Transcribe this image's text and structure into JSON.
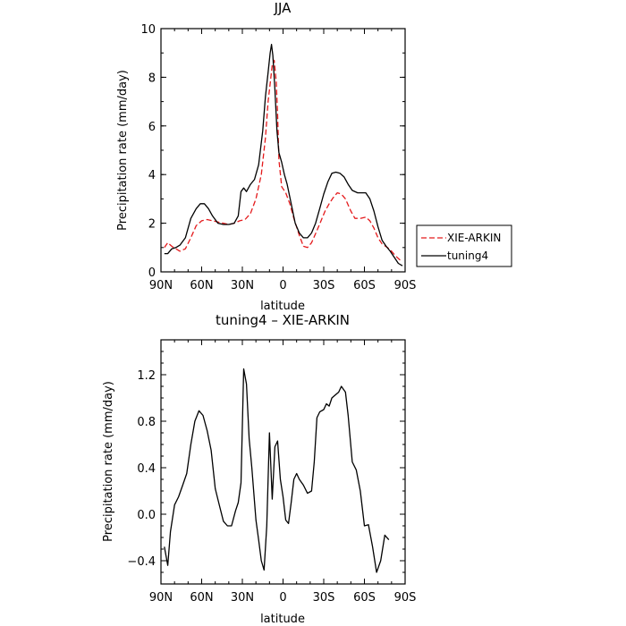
{
  "chart_data": [
    {
      "type": "line",
      "title": "JJA",
      "xlabel": "latitude",
      "ylabel": "Precipitation rate (mm/day)",
      "xlim": [
        90,
        -90
      ],
      "ylim": [
        0,
        10
      ],
      "x_ticks": [
        {
          "value": 90,
          "label": "90N"
        },
        {
          "value": 60,
          "label": "60N"
        },
        {
          "value": 30,
          "label": "30N"
        },
        {
          "value": 0,
          "label": "0"
        },
        {
          "value": -30,
          "label": "30S"
        },
        {
          "value": -60,
          "label": "60S"
        },
        {
          "value": -90,
          "label": "90S"
        }
      ],
      "y_ticks": [
        {
          "value": 0,
          "label": "0"
        },
        {
          "value": 2,
          "label": "2"
        },
        {
          "value": 4,
          "label": "4"
        },
        {
          "value": 6,
          "label": "6"
        },
        {
          "value": 8,
          "label": "8"
        },
        {
          "value": 10,
          "label": "10"
        }
      ],
      "legend_position": "right",
      "series": [
        {
          "name": "XIE-ARKIN",
          "color": "#e41a1c",
          "style": "dashed",
          "points": [
            [
              87.5,
              1.0
            ],
            [
              85,
              1.2
            ],
            [
              82,
              1.05
            ],
            [
              79,
              0.95
            ],
            [
              76,
              0.85
            ],
            [
              72,
              0.95
            ],
            [
              68,
              1.4
            ],
            [
              64,
              1.9
            ],
            [
              60,
              2.1
            ],
            [
              56,
              2.15
            ],
            [
              52,
              2.1
            ],
            [
              48,
              2.05
            ],
            [
              44,
              2.0
            ],
            [
              40,
              1.95
            ],
            [
              36,
              2.0
            ],
            [
              32,
              2.1
            ],
            [
              28,
              2.15
            ],
            [
              24,
              2.4
            ],
            [
              20,
              3.0
            ],
            [
              16,
              4.0
            ],
            [
              13,
              5.5
            ],
            [
              11,
              7.0
            ],
            [
              9,
              8.0
            ],
            [
              8,
              8.5
            ],
            [
              6.5,
              8.7
            ],
            [
              5,
              7.8
            ],
            [
              4,
              6.5
            ],
            [
              3,
              4.6
            ],
            [
              1,
              3.5
            ],
            [
              -2,
              3.25
            ],
            [
              -5,
              2.8
            ],
            [
              -8,
              2.2
            ],
            [
              -12,
              1.5
            ],
            [
              -15,
              1.05
            ],
            [
              -18,
              1.0
            ],
            [
              -21,
              1.2
            ],
            [
              -25,
              1.7
            ],
            [
              -28,
              2.1
            ],
            [
              -31,
              2.5
            ],
            [
              -34,
              2.8
            ],
            [
              -37,
              3.05
            ],
            [
              -40,
              3.25
            ],
            [
              -43,
              3.2
            ],
            [
              -46,
              3.0
            ],
            [
              -50,
              2.5
            ],
            [
              -53,
              2.2
            ],
            [
              -57,
              2.2
            ],
            [
              -61,
              2.25
            ],
            [
              -64,
              2.1
            ],
            [
              -67,
              1.8
            ],
            [
              -70,
              1.4
            ],
            [
              -73,
              1.15
            ],
            [
              -77,
              1.0
            ],
            [
              -80,
              0.85
            ],
            [
              -83,
              0.65
            ],
            [
              -86,
              0.5
            ],
            [
              -88,
              0.45
            ]
          ]
        },
        {
          "name": "tuning4",
          "color": "#000000",
          "style": "solid",
          "points": [
            [
              87.5,
              0.75
            ],
            [
              85,
              0.75
            ],
            [
              82,
              0.95
            ],
            [
              79,
              1.0
            ],
            [
              76,
              1.1
            ],
            [
              72,
              1.4
            ],
            [
              68,
              2.2
            ],
            [
              64,
              2.6
            ],
            [
              61,
              2.8
            ],
            [
              58,
              2.8
            ],
            [
              55,
              2.6
            ],
            [
              52,
              2.3
            ],
            [
              48,
              2.0
            ],
            [
              44,
              1.95
            ],
            [
              40,
              1.95
            ],
            [
              36,
              2.0
            ],
            [
              33,
              2.3
            ],
            [
              31,
              3.3
            ],
            [
              29,
              3.45
            ],
            [
              27,
              3.3
            ],
            [
              24,
              3.6
            ],
            [
              21,
              3.8
            ],
            [
              18,
              4.4
            ],
            [
              15,
              5.8
            ],
            [
              13,
              7.2
            ],
            [
              11,
              8.2
            ],
            [
              9.5,
              9.0
            ],
            [
              8.5,
              9.35
            ],
            [
              7.5,
              8.9
            ],
            [
              6,
              7.5
            ],
            [
              4.5,
              5.8
            ],
            [
              3,
              4.9
            ],
            [
              1,
              4.5
            ],
            [
              -1,
              4.0
            ],
            [
              -3,
              3.6
            ],
            [
              -6,
              2.8
            ],
            [
              -9,
              2.0
            ],
            [
              -12,
              1.6
            ],
            [
              -15,
              1.4
            ],
            [
              -18,
              1.4
            ],
            [
              -21,
              1.6
            ],
            [
              -24,
              2.0
            ],
            [
              -27,
              2.6
            ],
            [
              -30,
              3.2
            ],
            [
              -33,
              3.7
            ],
            [
              -36,
              4.05
            ],
            [
              -39,
              4.1
            ],
            [
              -42,
              4.05
            ],
            [
              -45,
              3.9
            ],
            [
              -48,
              3.6
            ],
            [
              -51,
              3.35
            ],
            [
              -55,
              3.25
            ],
            [
              -58,
              3.25
            ],
            [
              -61,
              3.25
            ],
            [
              -64,
              3.0
            ],
            [
              -67,
              2.5
            ],
            [
              -70,
              1.85
            ],
            [
              -73,
              1.3
            ],
            [
              -76,
              1.05
            ],
            [
              -79,
              0.85
            ],
            [
              -82,
              0.6
            ],
            [
              -85,
              0.35
            ],
            [
              -88,
              0.25
            ]
          ]
        }
      ]
    },
    {
      "type": "line",
      "title": "tuning4 – XIE-ARKIN",
      "xlabel": "latitude",
      "ylabel": "Precipitation rate (mm/day)",
      "xlim": [
        90,
        -90
      ],
      "ylim": [
        -0.6,
        1.5
      ],
      "x_ticks": [
        {
          "value": 90,
          "label": "90N"
        },
        {
          "value": 60,
          "label": "60N"
        },
        {
          "value": 30,
          "label": "30N"
        },
        {
          "value": 0,
          "label": "0"
        },
        {
          "value": -30,
          "label": "30S"
        },
        {
          "value": -60,
          "label": "60S"
        },
        {
          "value": -90,
          "label": "90S"
        }
      ],
      "y_ticks": [
        {
          "value": -0.4,
          "label": "−0.4"
        },
        {
          "value": 0.0,
          "label": "0.0"
        },
        {
          "value": 0.4,
          "label": "0.4"
        },
        {
          "value": 0.8,
          "label": "0.8"
        },
        {
          "value": 1.2,
          "label": "1.2"
        }
      ],
      "series": [
        {
          "name": "",
          "color": "#000000",
          "style": "solid",
          "points": [
            [
              87.5,
              -0.28
            ],
            [
              85,
              -0.44
            ],
            [
              83,
              -0.15
            ],
            [
              80,
              0.08
            ],
            [
              77,
              0.15
            ],
            [
              74,
              0.25
            ],
            [
              71,
              0.35
            ],
            [
              68,
              0.6
            ],
            [
              65,
              0.8
            ],
            [
              62,
              0.89
            ],
            [
              59,
              0.85
            ],
            [
              56,
              0.72
            ],
            [
              53,
              0.55
            ],
            [
              50,
              0.22
            ],
            [
              47,
              0.08
            ],
            [
              44,
              -0.06
            ],
            [
              41,
              -0.1
            ],
            [
              38,
              -0.1
            ],
            [
              35,
              0.03
            ],
            [
              33,
              0.1
            ],
            [
              31,
              0.27
            ],
            [
              29,
              1.25
            ],
            [
              27,
              1.12
            ],
            [
              25,
              0.65
            ],
            [
              23,
              0.4
            ],
            [
              20,
              -0.05
            ],
            [
              18,
              -0.22
            ],
            [
              16,
              -0.4
            ],
            [
              14,
              -0.48
            ],
            [
              12,
              -0.1
            ],
            [
              10,
              0.7
            ],
            [
              8,
              0.13
            ],
            [
              6,
              0.58
            ],
            [
              4,
              0.63
            ],
            [
              2,
              0.3
            ],
            [
              0,
              0.15
            ],
            [
              -2,
              -0.05
            ],
            [
              -4,
              -0.08
            ],
            [
              -6,
              0.1
            ],
            [
              -8,
              0.3
            ],
            [
              -10,
              0.35
            ],
            [
              -12,
              0.3
            ],
            [
              -15,
              0.25
            ],
            [
              -18,
              0.18
            ],
            [
              -21,
              0.2
            ],
            [
              -23,
              0.45
            ],
            [
              -25,
              0.83
            ],
            [
              -27,
              0.88
            ],
            [
              -30,
              0.9
            ],
            [
              -32,
              0.95
            ],
            [
              -34,
              0.93
            ],
            [
              -36,
              1.0
            ],
            [
              -38,
              1.02
            ],
            [
              -41,
              1.05
            ],
            [
              -43,
              1.1
            ],
            [
              -46,
              1.05
            ],
            [
              -48,
              0.85
            ],
            [
              -51,
              0.45
            ],
            [
              -54,
              0.38
            ],
            [
              -57,
              0.2
            ],
            [
              -60,
              -0.1
            ],
            [
              -63,
              -0.09
            ],
            [
              -66,
              -0.28
            ],
            [
              -69,
              -0.5
            ],
            [
              -72,
              -0.4
            ],
            [
              -75,
              -0.18
            ],
            [
              -78,
              -0.22
            ]
          ]
        }
      ]
    }
  ]
}
